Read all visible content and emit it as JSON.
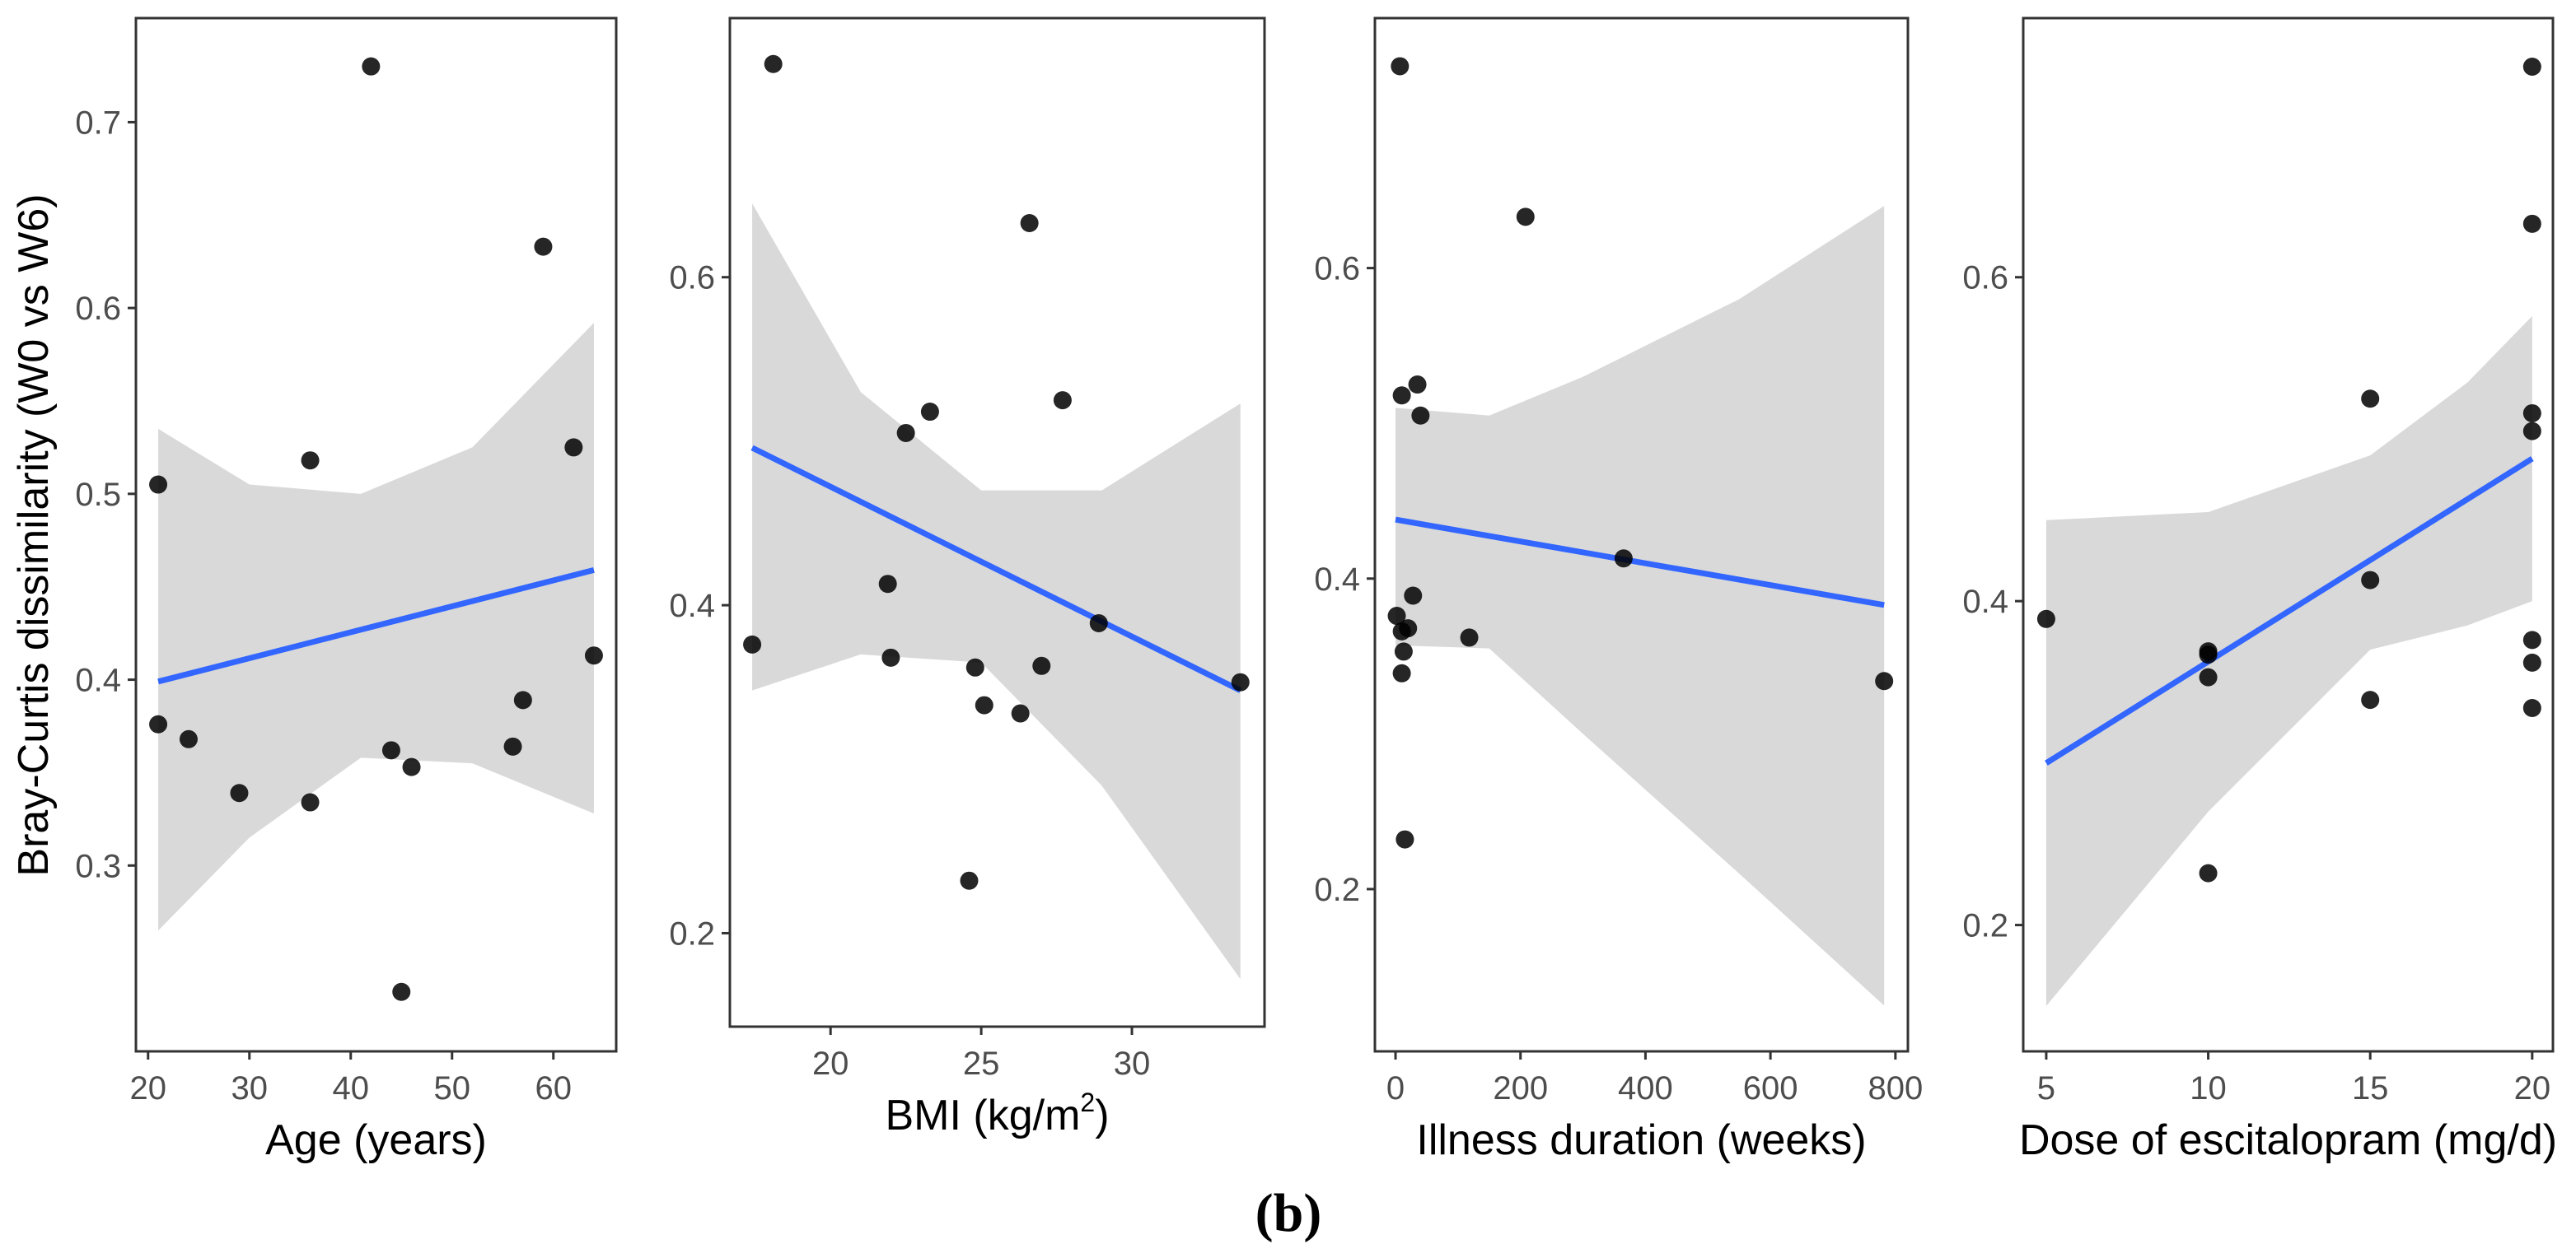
{
  "caption": "(b)",
  "ylabel": "Bray-Curtis dissimilarity (W0 vs W6)",
  "colors": {
    "point": "#000000",
    "fit": "#3366ff",
    "band": "#d9d9d9",
    "frame": "#333333",
    "tick_text": "#4d4d4d"
  },
  "chart_data": [
    {
      "type": "scatter",
      "xlabel": "Age (years)",
      "ylabel": "Bray-Curtis dissimilarity (W0 vs W6)",
      "xlim": [
        18.8,
        66.2
      ],
      "ylim": [
        0.2,
        0.756
      ],
      "xticks": [
        20,
        30,
        40,
        50,
        60
      ],
      "yticks": [
        0.3,
        0.4,
        0.5,
        0.6,
        0.7
      ],
      "points": [
        [
          42,
          0.73
        ],
        [
          59,
          0.633
        ],
        [
          21,
          0.505
        ],
        [
          36,
          0.518
        ],
        [
          62,
          0.525
        ],
        [
          64,
          0.413
        ],
        [
          21,
          0.376
        ],
        [
          24,
          0.368
        ],
        [
          29,
          0.339
        ],
        [
          36,
          0.334
        ],
        [
          44,
          0.362
        ],
        [
          46,
          0.353
        ],
        [
          56,
          0.364
        ],
        [
          57,
          0.389
        ],
        [
          45,
          0.232
        ]
      ],
      "fit": {
        "x": [
          21,
          64
        ],
        "y": [
          0.399,
          0.459
        ]
      },
      "ci_band": {
        "x": [
          21,
          30,
          41,
          52,
          64
        ],
        "lower": [
          0.265,
          0.315,
          0.358,
          0.355,
          0.328
        ],
        "upper": [
          0.535,
          0.505,
          0.5,
          0.525,
          0.592
        ]
      }
    },
    {
      "type": "scatter",
      "xlabel": "BMI (kg/m",
      "xlabel_sup": "2",
      "xlabel_end": ")",
      "xlim": [
        16.66,
        34.4
      ],
      "ylim": [
        0.143,
        0.758
      ],
      "xticks": [
        20,
        25,
        30
      ],
      "yticks": [
        0.2,
        0.4,
        0.6
      ],
      "points": [
        [
          18.1,
          0.73
        ],
        [
          26.6,
          0.633
        ],
        [
          27.7,
          0.525
        ],
        [
          23.3,
          0.518
        ],
        [
          22.5,
          0.505
        ],
        [
          21.9,
          0.413
        ],
        [
          17.4,
          0.376
        ],
        [
          22.0,
          0.368
        ],
        [
          24.8,
          0.362
        ],
        [
          27.0,
          0.363
        ],
        [
          28.9,
          0.389
        ],
        [
          25.1,
          0.339
        ],
        [
          26.3,
          0.334
        ],
        [
          33.6,
          0.353
        ],
        [
          24.6,
          0.232
        ]
      ],
      "fit": {
        "x": [
          17.4,
          33.6
        ],
        "y": [
          0.496,
          0.348
        ]
      },
      "ci_band": {
        "x": [
          17.4,
          21,
          25,
          29,
          33.6
        ],
        "lower": [
          0.348,
          0.37,
          0.365,
          0.29,
          0.172
        ],
        "upper": [
          0.645,
          0.53,
          0.47,
          0.47,
          0.523
        ]
      }
    },
    {
      "type": "scatter",
      "xlabel": "Illness duration (weeks)",
      "xlim": [
        -33,
        820
      ],
      "ylim": [
        0.0955,
        0.761
      ],
      "xticks": [
        0,
        200,
        400,
        600,
        800
      ],
      "yticks": [
        0.2,
        0.4,
        0.6
      ],
      "points": [
        [
          7,
          0.73
        ],
        [
          208,
          0.633
        ],
        [
          35,
          0.525
        ],
        [
          10,
          0.518
        ],
        [
          40,
          0.505
        ],
        [
          365,
          0.413
        ],
        [
          28,
          0.389
        ],
        [
          2,
          0.376
        ],
        [
          10,
          0.366
        ],
        [
          20,
          0.368
        ],
        [
          13,
          0.353
        ],
        [
          118,
          0.362
        ],
        [
          10,
          0.339
        ],
        [
          782,
          0.334
        ],
        [
          15,
          0.232
        ]
      ],
      "fit": {
        "x": [
          0,
          782
        ],
        "y": [
          0.438,
          0.383
        ]
      },
      "ci_band": {
        "x": [
          0,
          150,
          300,
          550,
          782
        ],
        "lower": [
          0.357,
          0.355,
          0.3,
          0.21,
          0.125
        ],
        "upper": [
          0.51,
          0.505,
          0.53,
          0.58,
          0.64
        ]
      }
    },
    {
      "type": "scatter",
      "xlabel": "Dose of escitalopram (mg/d)",
      "xlim": [
        4.29,
        20.64
      ],
      "ylim": [
        0.122,
        0.76
      ],
      "xticks": [
        5,
        10,
        15,
        20
      ],
      "yticks": [
        0.2,
        0.4,
        0.6
      ],
      "points": [
        [
          5,
          0.389
        ],
        [
          10,
          0.367
        ],
        [
          10,
          0.353
        ],
        [
          10,
          0.232
        ],
        [
          15,
          0.525
        ],
        [
          15,
          0.413
        ],
        [
          15,
          0.339
        ],
        [
          20,
          0.73
        ],
        [
          20,
          0.633
        ],
        [
          20,
          0.516
        ],
        [
          20,
          0.505
        ],
        [
          20,
          0.376
        ],
        [
          20,
          0.362
        ],
        [
          20,
          0.334
        ],
        [
          10,
          0.369
        ]
      ],
      "fit": {
        "x": [
          5,
          20
        ],
        "y": [
          0.3,
          0.488
        ]
      },
      "ci_band": {
        "x": [
          5,
          10,
          15,
          18,
          20
        ],
        "lower": [
          0.15,
          0.27,
          0.37,
          0.385,
          0.4
        ],
        "upper": [
          0.45,
          0.455,
          0.49,
          0.535,
          0.576
        ]
      }
    }
  ]
}
